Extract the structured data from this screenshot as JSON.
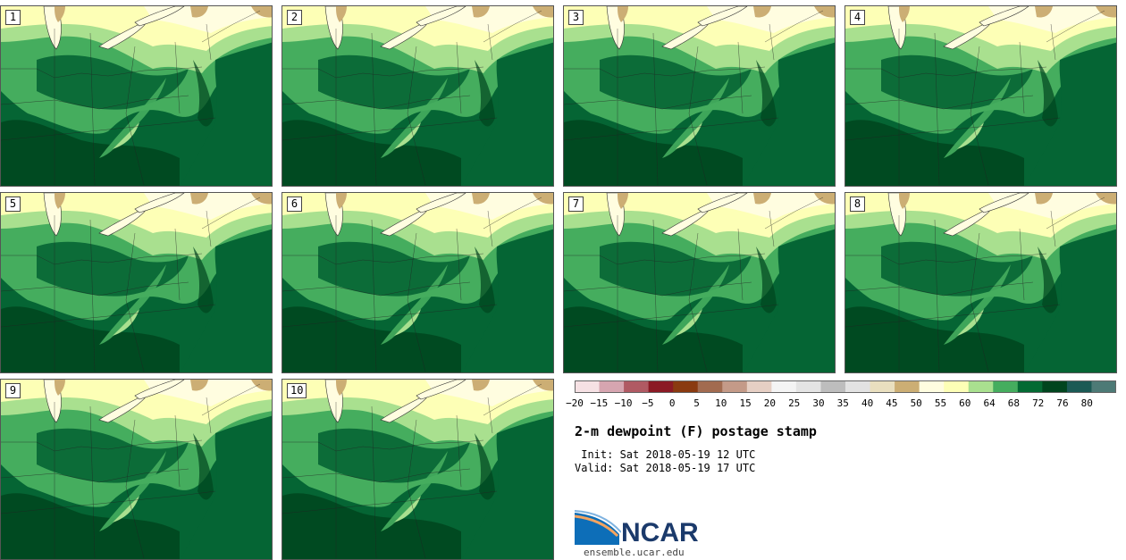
{
  "panels": [
    {
      "label": "1"
    },
    {
      "label": "2"
    },
    {
      "label": "3"
    },
    {
      "label": "4"
    },
    {
      "label": "5"
    },
    {
      "label": "6"
    },
    {
      "label": "7"
    },
    {
      "label": "8"
    },
    {
      "label": "9"
    },
    {
      "label": "10"
    }
  ],
  "colorbar": {
    "tick_labels": [
      "−20",
      "−15",
      "−10",
      "−5",
      "0",
      "5",
      "10",
      "15",
      "20",
      "25",
      "30",
      "35",
      "40",
      "45",
      "50",
      "55",
      "60",
      "64",
      "68",
      "72",
      "76",
      "80"
    ],
    "colors": [
      "#f6e1e4",
      "#d6a5b0",
      "#b05a63",
      "#8b1a24",
      "#8a3a10",
      "#a26b50",
      "#c49a88",
      "#e6cfc4",
      "#f4f4f4",
      "#e4e4e4",
      "#bdbdbd",
      "#e2e2e2",
      "#e9dfbf",
      "#ccae74",
      "#fffde0",
      "#fdffb6",
      "#a9e08f",
      "#45ad5e",
      "#046a33",
      "#00451e",
      "#1b5a55",
      "#4d7a76"
    ]
  },
  "title": "2-m dewpoint (F) postage stamp",
  "init_line": " Init: Sat 2018-05-19 12 UTC",
  "valid_line": "Valid: Sat 2018-05-19 17 UTC",
  "logo_text": "NCAR",
  "site": "ensemble.ucar.edu"
}
